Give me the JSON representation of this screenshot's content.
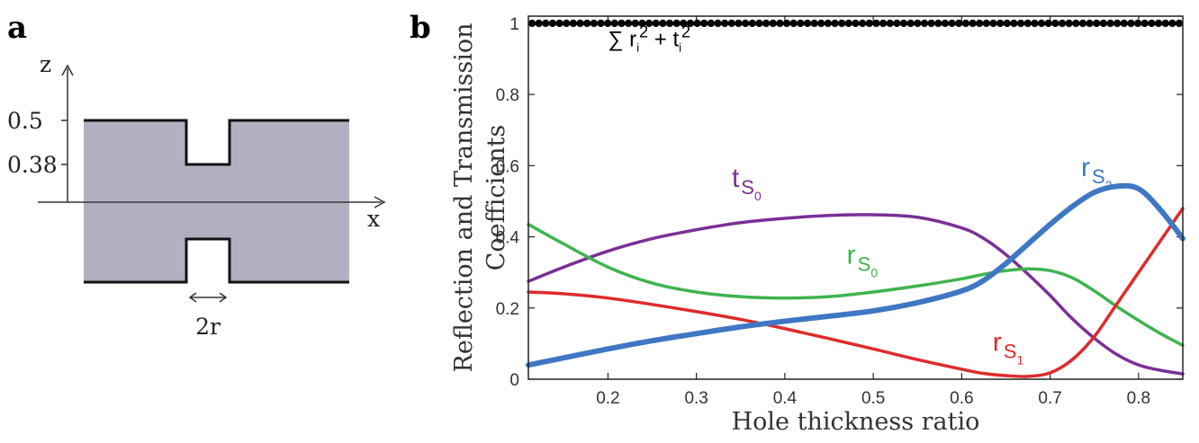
{
  "panels": {
    "a": "a",
    "b": "b"
  },
  "diagram": {
    "z_label": "z",
    "x_label": "x",
    "z_ticks": [
      "0.5",
      "0.38"
    ],
    "width_label": "2r",
    "fill_color": "#b3afc0"
  },
  "chart_data": {
    "type": "line",
    "xlabel": "Hole thickness ratio",
    "ylabel": [
      "Reflection and Transmission",
      "Coefficients"
    ],
    "xlim": [
      0.11,
      0.85
    ],
    "ylim": [
      0,
      1.02
    ],
    "x_ticks": [
      "0.2",
      "0.3",
      "0.4",
      "0.5",
      "0.6",
      "0.7",
      "0.8"
    ],
    "y_ticks": [
      "0",
      "0.2",
      "0.4",
      "0.6",
      "0.8",
      "1"
    ],
    "x": [
      0.11,
      0.15,
      0.2,
      0.25,
      0.3,
      0.35,
      0.4,
      0.45,
      0.5,
      0.55,
      0.6,
      0.625,
      0.65,
      0.675,
      0.7,
      0.725,
      0.75,
      0.775,
      0.8,
      0.825,
      0.85
    ],
    "series": [
      {
        "key": "tS0",
        "color": "#7b2f97",
        "width": 3.5,
        "values": [
          0.275,
          0.315,
          0.36,
          0.395,
          0.42,
          0.44,
          0.452,
          0.46,
          0.462,
          0.455,
          0.425,
          0.395,
          0.35,
          0.295,
          0.235,
          0.17,
          0.115,
          0.07,
          0.04,
          0.025,
          0.015
        ]
      },
      {
        "key": "rS0",
        "color": "#3fb34f",
        "width": 3.5,
        "values": [
          0.435,
          0.38,
          0.315,
          0.27,
          0.245,
          0.232,
          0.228,
          0.232,
          0.245,
          0.262,
          0.282,
          0.295,
          0.305,
          0.31,
          0.305,
          0.285,
          0.248,
          0.205,
          0.165,
          0.128,
          0.095
        ]
      },
      {
        "key": "rS1",
        "color": "#e02a2a",
        "width": 3.5,
        "values": [
          0.245,
          0.24,
          0.228,
          0.21,
          0.19,
          0.168,
          0.142,
          0.114,
          0.085,
          0.055,
          0.028,
          0.016,
          0.01,
          0.008,
          0.018,
          0.055,
          0.12,
          0.21,
          0.3,
          0.39,
          0.48
        ]
      },
      {
        "key": "rS2",
        "color": "#3f77c4",
        "width": 6,
        "values": [
          0.04,
          0.06,
          0.085,
          0.108,
          0.128,
          0.147,
          0.163,
          0.177,
          0.192,
          0.215,
          0.248,
          0.278,
          0.325,
          0.38,
          0.435,
          0.485,
          0.525,
          0.542,
          0.535,
          0.475,
          0.395
        ]
      },
      {
        "key": "sum",
        "color": "#000000",
        "width": 2,
        "marker": "dot",
        "values": [
          1,
          1,
          1,
          1,
          1,
          1,
          1,
          1,
          1,
          1,
          1,
          1,
          1,
          1,
          1,
          1,
          1,
          1,
          1,
          1,
          1
        ]
      }
    ],
    "labels": {
      "tS0": {
        "main": "t",
        "sub": "S",
        "subsub": "0",
        "color": "#7b2f97",
        "at": [
          0.34,
          0.54
        ]
      },
      "rS0": {
        "main": "r",
        "sub": "S",
        "subsub": "0",
        "color": "#3fb34f",
        "at": [
          0.47,
          0.325
        ]
      },
      "rS1": {
        "main": "r",
        "sub": "S",
        "subsub": "1",
        "color": "#e02a2a",
        "at": [
          0.635,
          0.08
        ]
      },
      "rS2": {
        "main": "r",
        "sub": "S",
        "subsub": "2",
        "color": "#3f77c4",
        "at": [
          0.735,
          0.57
        ]
      },
      "sum": {
        "text": "∑ r",
        "sub1": "i",
        "sup1": "2",
        "mid": " + t",
        "sub2": "i",
        "sup2": "2",
        "color": "#000000",
        "at": [
          0.2,
          0.935
        ]
      }
    }
  }
}
